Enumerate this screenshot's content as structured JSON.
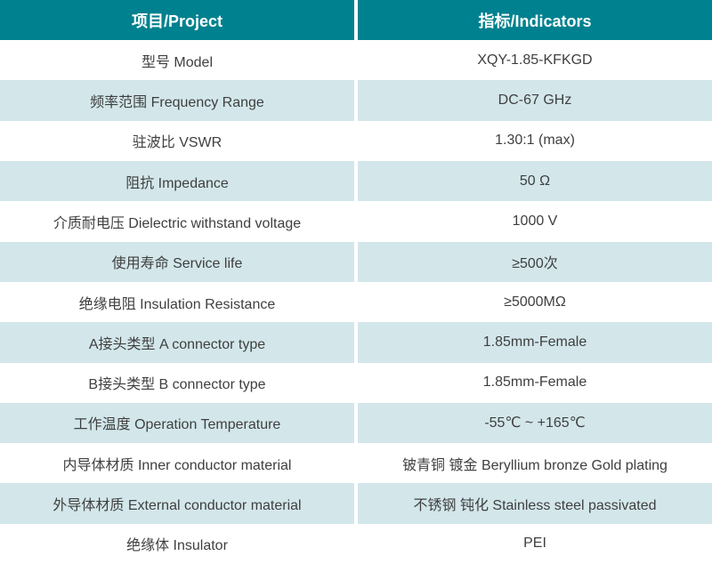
{
  "table": {
    "header": {
      "project": "项目/Project",
      "indicators": "指标/Indicators"
    },
    "rows": [
      {
        "project": "型号 Model",
        "indicators": "XQY-1.85-KFKGD"
      },
      {
        "project": "频率范围 Frequency Range",
        "indicators": "DC-67 GHz"
      },
      {
        "project": "驻波比 VSWR",
        "indicators": "1.30:1 (max)"
      },
      {
        "project": "阻抗 Impedance",
        "indicators": "50 Ω"
      },
      {
        "project": "介质耐电压 Dielectric withstand voltage",
        "indicators": "1000 V"
      },
      {
        "project": "使用寿命 Service life",
        "indicators": "≥500次"
      },
      {
        "project": "绝缘电阻 Insulation Resistance",
        "indicators": "≥5000MΩ"
      },
      {
        "project": "A接头类型 A connector type",
        "indicators": "1.85mm-Female"
      },
      {
        "project": "B接头类型 B connector type",
        "indicators": "1.85mm-Female"
      },
      {
        "project": "工作温度 Operation Temperature",
        "indicators": "-55℃ ~ +165℃"
      },
      {
        "project": "内导体材质 Inner conductor material",
        "indicators": "铍青铜 镀金 Beryllium bronze Gold plating"
      },
      {
        "project": "外导体材质 External conductor material",
        "indicators": "不锈钢 钝化 Stainless steel passivated"
      },
      {
        "project": "绝缘体 Insulator",
        "indicators": "PEI"
      }
    ],
    "colors": {
      "header_bg": "#00818F",
      "header_text": "#FFFFFF",
      "row_bg": "#FFFFFF",
      "row_alt_bg": "#D3E7EB",
      "cell_text": "#3F3F3F"
    }
  }
}
